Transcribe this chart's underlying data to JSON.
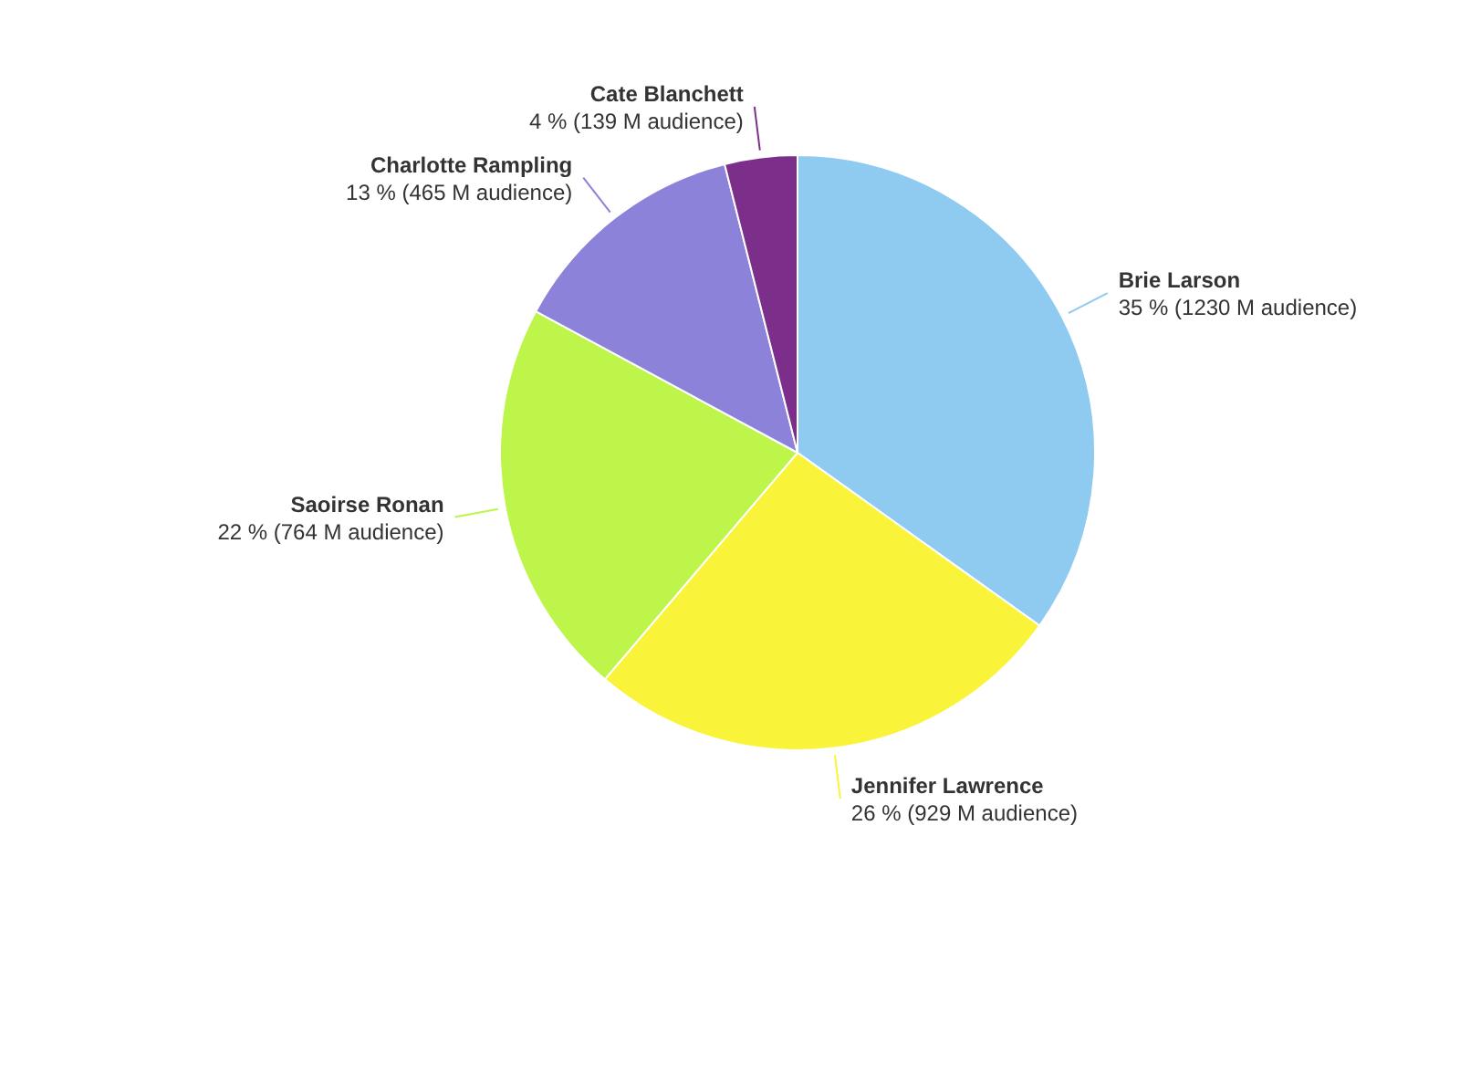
{
  "chart_data": {
    "type": "pie",
    "categories": [
      "Brie Larson",
      "Jennifer Lawrence",
      "Saoirse Ronan",
      "Charlotte Rampling",
      "Cate Blanchett"
    ],
    "values": [
      1230,
      929,
      764,
      465,
      139
    ],
    "value_labels": [
      "35 % (1230 M audience)",
      "26 % (929 M audience)",
      "22 % (764 M audience)",
      "13 % (465 M audience)",
      "4 % (139 M audience)"
    ],
    "colors": [
      "#8fcaf0",
      "#f9f43a",
      "#bdf54b",
      "#8c82d9",
      "#7b2f8b"
    ]
  }
}
